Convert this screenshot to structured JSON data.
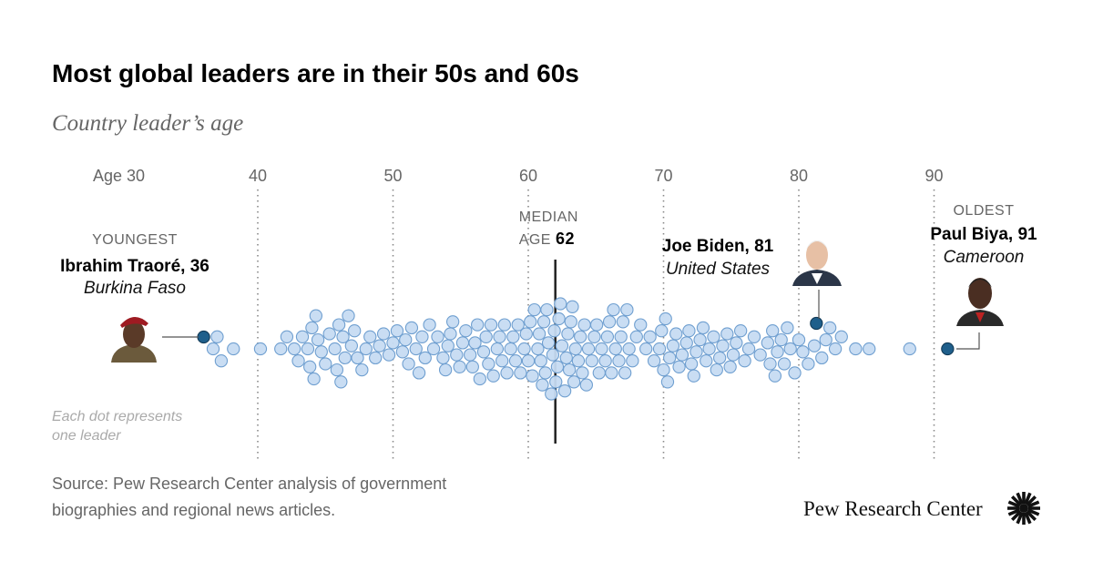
{
  "title": "Most global leaders are in their 50s and 60s",
  "subtitle": "Country leader’s age",
  "note": [
    "Each dot represents",
    "one leader"
  ],
  "source": [
    "Source: Pew Research Center analysis of government",
    "biographies and regional news articles."
  ],
  "logo_text": "Pew Research Center",
  "colors": {
    "dot_fill": "#c6dbf2",
    "dot_stroke": "#6f9fd0",
    "highlight": "#1f5f8b",
    "grid": "#888888",
    "median": "#222222"
  },
  "chart_data": {
    "type": "beeswarm",
    "title": "Most global leaders are in their 50s and 60s",
    "subtitle": "Country leader’s age",
    "xlim": [
      30,
      93
    ],
    "ticks": [
      30,
      40,
      50,
      60,
      70,
      80,
      90
    ],
    "tick_labels": [
      "Age 30",
      "40",
      "50",
      "60",
      "70",
      "80",
      "90"
    ],
    "grid": true,
    "median": {
      "label_top": "MEDIAN",
      "label_prefix": "AGE",
      "value": 62
    },
    "age_counts": [
      [
        37,
        3
      ],
      [
        38,
        1
      ],
      [
        40,
        1
      ],
      [
        42,
        2
      ],
      [
        43,
        3
      ],
      [
        44,
        6
      ],
      [
        45,
        3
      ],
      [
        46,
        6
      ],
      [
        47,
        4
      ],
      [
        48,
        3
      ],
      [
        49,
        3
      ],
      [
        50,
        3
      ],
      [
        51,
        4
      ],
      [
        52,
        4
      ],
      [
        53,
        3
      ],
      [
        54,
        5
      ],
      [
        55,
        4
      ],
      [
        56,
        5
      ],
      [
        57,
        5
      ],
      [
        58,
        5
      ],
      [
        59,
        5
      ],
      [
        60,
        6
      ],
      [
        61,
        8
      ],
      [
        62,
        8
      ],
      [
        63,
        8
      ],
      [
        64,
        6
      ],
      [
        65,
        5
      ],
      [
        66,
        6
      ],
      [
        67,
        6
      ],
      [
        68,
        3
      ],
      [
        69,
        3
      ],
      [
        70,
        6
      ],
      [
        71,
        4
      ],
      [
        72,
        5
      ],
      [
        73,
        4
      ],
      [
        74,
        4
      ],
      [
        75,
        4
      ],
      [
        76,
        3
      ],
      [
        77,
        2
      ],
      [
        78,
        5
      ],
      [
        79,
        4
      ],
      [
        80,
        3
      ],
      [
        81,
        2
      ],
      [
        82,
        3
      ],
      [
        83,
        2
      ],
      [
        84,
        1
      ],
      [
        85,
        1
      ],
      [
        88,
        1
      ]
    ],
    "highlights": [
      {
        "tag": "YOUNGEST",
        "name": "Ibrahim Traoré, 36",
        "country": "Burkina Faso",
        "age": 36
      },
      {
        "tag": "",
        "name": "Joe Biden, 81",
        "country": "United States",
        "age": 81
      },
      {
        "tag": "OLDEST",
        "name": "Paul Biya, 91",
        "country": "Cameroon",
        "age": 91
      }
    ]
  }
}
